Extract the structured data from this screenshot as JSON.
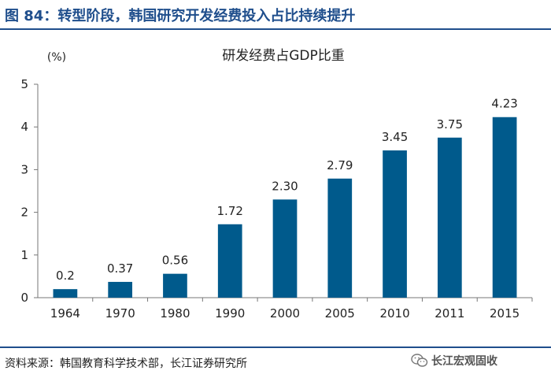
{
  "figure": {
    "title": "图 84：转型阶段，韩国研究开发经费投入占比持续提升",
    "source": "资料来源：韩国教育科学技术部，长江证券研究所",
    "brand": "长江宏观固收",
    "brand_icon": "wechat-icon"
  },
  "chart_data": {
    "type": "bar",
    "title": "研发经费占GDP比重",
    "unit_label": "(%)",
    "categories": [
      "1964",
      "1970",
      "1980",
      "1990",
      "2000",
      "2005",
      "2010",
      "2011",
      "2015"
    ],
    "values": [
      0.2,
      0.37,
      0.56,
      1.72,
      2.3,
      2.79,
      3.45,
      3.75,
      4.23
    ],
    "value_labels": [
      "0.2",
      "0.37",
      "0.56",
      "1.72",
      "2.30",
      "2.79",
      "3.45",
      "3.75",
      "4.23"
    ],
    "ylim": [
      0,
      5
    ],
    "yticks": [
      "0",
      "1",
      "2",
      "3",
      "4",
      "5"
    ],
    "grid": false,
    "legend": "none",
    "bar_color": "#005a8c"
  }
}
